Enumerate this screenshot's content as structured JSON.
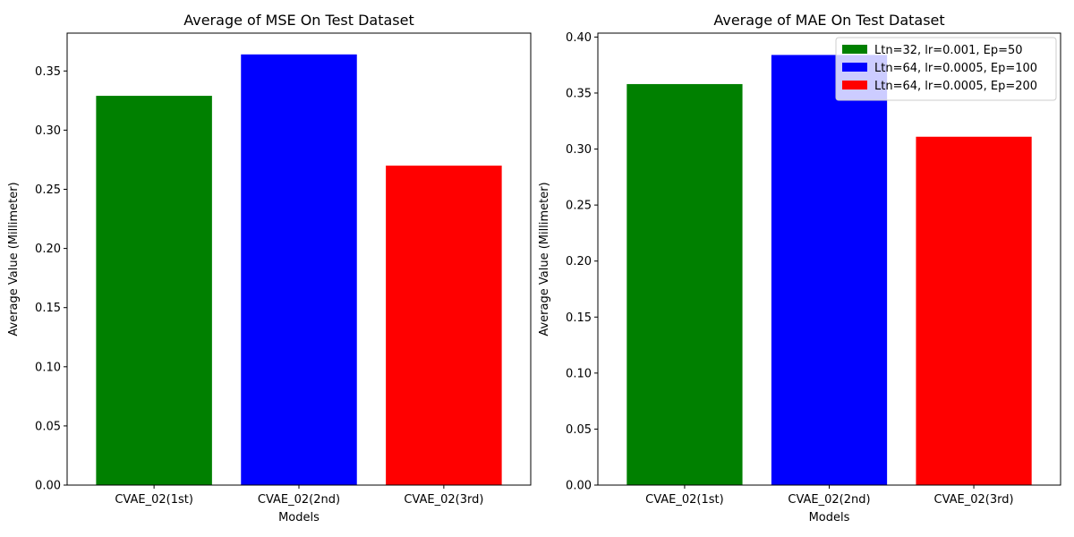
{
  "chart_data": [
    {
      "type": "bar",
      "title": "Average of MSE On Test Dataset",
      "xlabel": "Models",
      "ylabel": "Average Value (Millimeter)",
      "categories": [
        "CVAE_02(1st)",
        "CVAE_02(2nd)",
        "CVAE_02(3rd)"
      ],
      "values": [
        0.329,
        0.364,
        0.27
      ],
      "colors": [
        "#008000",
        "#0000ff",
        "#ff0000"
      ],
      "ylim": [
        0,
        0.382
      ],
      "yticks": [
        "0.00",
        "0.05",
        "0.10",
        "0.15",
        "0.20",
        "0.25",
        "0.30",
        "0.35"
      ],
      "grid": false,
      "legend": null
    },
    {
      "type": "bar",
      "title": "Average of MAE On Test Dataset",
      "xlabel": "Models",
      "ylabel": "Average Value (Millimeter)",
      "categories": [
        "CVAE_02(1st)",
        "CVAE_02(2nd)",
        "CVAE_02(3rd)"
      ],
      "values": [
        0.358,
        0.384,
        0.311
      ],
      "colors": [
        "#008000",
        "#0000ff",
        "#ff0000"
      ],
      "ylim": [
        0,
        0.4035
      ],
      "yticks": [
        "0.00",
        "0.05",
        "0.10",
        "0.15",
        "0.20",
        "0.25",
        "0.30",
        "0.35",
        "0.40"
      ],
      "grid": false,
      "legend": {
        "placement": "top-right",
        "entries": [
          {
            "label": "Ltn=32, lr=0.001, Ep=50",
            "color": "#008000"
          },
          {
            "label": "Ltn=64, lr=0.0005, Ep=100",
            "color": "#0000ff"
          },
          {
            "label": "Ltn=64, lr=0.0005, Ep=200",
            "color": "#ff0000"
          }
        ]
      }
    }
  ]
}
